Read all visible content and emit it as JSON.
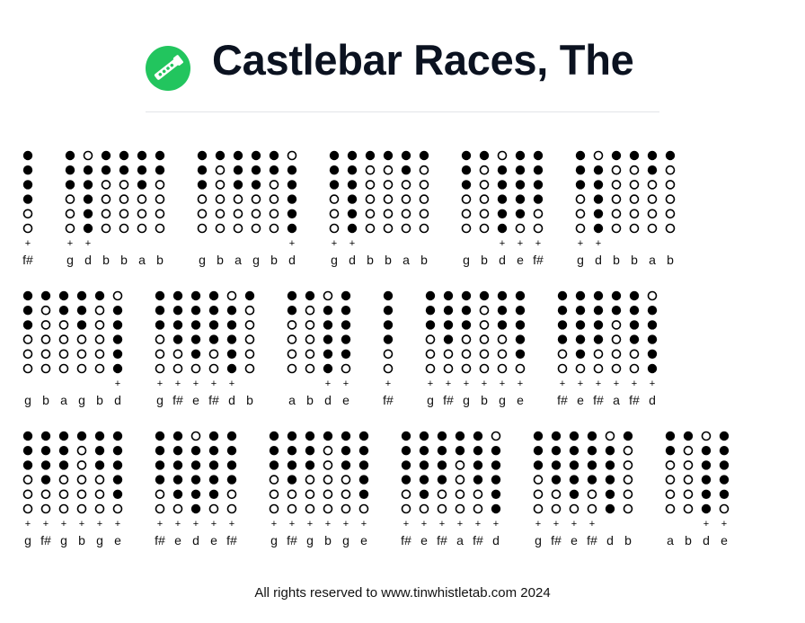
{
  "page": {
    "title": "Castlebar Races, The",
    "footer": "All rights reserved to www.tinwhistletab.com 2024",
    "logo_icon": "tin-whistle-icon",
    "accent_color": "#22c55e"
  },
  "tab": {
    "legend": {
      "closed": "filled hole",
      "open": "empty hole",
      "plus": "second octave"
    },
    "lines": [
      [
        [
          {
            "note": "f#",
            "holes": "111100",
            "plus": true
          }
        ],
        [
          {
            "note": "g",
            "holes": "111000",
            "plus": true
          },
          {
            "note": "d",
            "holes": "011111",
            "plus": true
          },
          {
            "note": "b",
            "holes": "110000",
            "plus": false
          },
          {
            "note": "b",
            "holes": "110000",
            "plus": false
          },
          {
            "note": "a",
            "holes": "111000",
            "plus": false
          },
          {
            "note": "b",
            "holes": "110000",
            "plus": false
          }
        ],
        [
          {
            "note": "g",
            "holes": "111000",
            "plus": false
          },
          {
            "note": "b",
            "holes": "100000",
            "plus": false
          },
          {
            "note": "a",
            "holes": "111000",
            "plus": false
          },
          {
            "note": "g",
            "holes": "111000",
            "plus": false
          },
          {
            "note": "b",
            "holes": "110000",
            "plus": false
          },
          {
            "note": "d",
            "holes": "011111",
            "plus": true
          }
        ],
        [
          {
            "note": "g",
            "holes": "111000",
            "plus": true
          },
          {
            "note": "d",
            "holes": "111111",
            "plus": true
          },
          {
            "note": "b",
            "holes": "100000",
            "plus": false
          },
          {
            "note": "b",
            "holes": "100000",
            "plus": false
          },
          {
            "note": "a",
            "holes": "110000",
            "plus": false
          },
          {
            "note": "b",
            "holes": "100000",
            "plus": false
          }
        ],
        [
          {
            "note": "g",
            "holes": "111000",
            "plus": false
          },
          {
            "note": "b",
            "holes": "100000",
            "plus": false
          },
          {
            "note": "d",
            "holes": "011111",
            "plus": true
          },
          {
            "note": "e",
            "holes": "111110",
            "plus": true
          },
          {
            "note": "f#",
            "holes": "111100",
            "plus": true
          }
        ],
        [
          {
            "note": "g",
            "holes": "111000",
            "plus": true
          },
          {
            "note": "d",
            "holes": "011111",
            "plus": true
          },
          {
            "note": "b",
            "holes": "100000",
            "plus": false
          },
          {
            "note": "b",
            "holes": "100000",
            "plus": false
          },
          {
            "note": "a",
            "holes": "110000",
            "plus": false
          },
          {
            "note": "b",
            "holes": "100000",
            "plus": false
          }
        ]
      ],
      [
        [
          {
            "note": "g",
            "holes": "111000",
            "plus": false
          },
          {
            "note": "b",
            "holes": "100000",
            "plus": false
          },
          {
            "note": "a",
            "holes": "110000",
            "plus": false
          },
          {
            "note": "g",
            "holes": "111000",
            "plus": false
          },
          {
            "note": "b",
            "holes": "100000",
            "plus": false
          },
          {
            "note": "d",
            "holes": "011111",
            "plus": true
          }
        ],
        [
          {
            "note": "g",
            "holes": "111000",
            "plus": true
          },
          {
            "note": "f#",
            "holes": "111100",
            "plus": true
          },
          {
            "note": "e",
            "holes": "111110",
            "plus": true
          },
          {
            "note": "f#",
            "holes": "111100",
            "plus": true
          },
          {
            "note": "d",
            "holes": "011111",
            "plus": true
          },
          {
            "note": "b",
            "holes": "100000",
            "plus": false
          }
        ],
        [
          {
            "note": "a",
            "holes": "110000",
            "plus": false
          },
          {
            "note": "b",
            "holes": "100000",
            "plus": false
          },
          {
            "note": "d",
            "holes": "011111",
            "plus": true
          },
          {
            "note": "e",
            "holes": "111110",
            "plus": true
          }
        ],
        [
          {
            "note": "f#",
            "holes": "111100",
            "plus": true
          }
        ],
        [
          {
            "note": "g",
            "holes": "111000",
            "plus": true
          },
          {
            "note": "f#",
            "holes": "111100",
            "plus": true
          },
          {
            "note": "g",
            "holes": "111000",
            "plus": true
          },
          {
            "note": "b",
            "holes": "100000",
            "plus": true
          },
          {
            "note": "g",
            "holes": "111000",
            "plus": true
          },
          {
            "note": "e",
            "holes": "111110",
            "plus": true
          }
        ],
        [
          {
            "note": "f#",
            "holes": "111100",
            "plus": true
          },
          {
            "note": "e",
            "holes": "111110",
            "plus": true
          },
          {
            "note": "f#",
            "holes": "111100",
            "plus": true
          },
          {
            "note": "a",
            "holes": "110000",
            "plus": true
          },
          {
            "note": "f#",
            "holes": "111100",
            "plus": true
          },
          {
            "note": "d",
            "holes": "011111",
            "plus": true
          }
        ]
      ],
      [
        [
          {
            "note": "g",
            "holes": "111000",
            "plus": true
          },
          {
            "note": "f#",
            "holes": "111100",
            "plus": true
          },
          {
            "note": "g",
            "holes": "111000",
            "plus": true
          },
          {
            "note": "b",
            "holes": "100000",
            "plus": true
          },
          {
            "note": "g",
            "holes": "111000",
            "plus": true
          },
          {
            "note": "e",
            "holes": "111110",
            "plus": true
          }
        ],
        [
          {
            "note": "f#",
            "holes": "111100",
            "plus": true
          },
          {
            "note": "e",
            "holes": "111110",
            "plus": true
          },
          {
            "note": "d",
            "holes": "011111",
            "plus": true
          },
          {
            "note": "e",
            "holes": "111110",
            "plus": true
          },
          {
            "note": "f#",
            "holes": "111100",
            "plus": true
          }
        ],
        [
          {
            "note": "g",
            "holes": "111000",
            "plus": true
          },
          {
            "note": "f#",
            "holes": "111100",
            "plus": true
          },
          {
            "note": "g",
            "holes": "111000",
            "plus": true
          },
          {
            "note": "b",
            "holes": "100000",
            "plus": true
          },
          {
            "note": "g",
            "holes": "111000",
            "plus": true
          },
          {
            "note": "e",
            "holes": "111110",
            "plus": true
          }
        ],
        [
          {
            "note": "f#",
            "holes": "111100",
            "plus": true
          },
          {
            "note": "e",
            "holes": "111110",
            "plus": true
          },
          {
            "note": "f#",
            "holes": "111100",
            "plus": true
          },
          {
            "note": "a",
            "holes": "110000",
            "plus": true
          },
          {
            "note": "f#",
            "holes": "111100",
            "plus": true
          },
          {
            "note": "d",
            "holes": "011111",
            "plus": true
          }
        ],
        [
          {
            "note": "g",
            "holes": "111000",
            "plus": true
          },
          {
            "note": "f#",
            "holes": "111100",
            "plus": true
          },
          {
            "note": "e",
            "holes": "111110",
            "plus": true
          },
          {
            "note": "f#",
            "holes": "111100",
            "plus": true
          },
          {
            "note": "d",
            "holes": "011111",
            "plus": false
          },
          {
            "note": "b",
            "holes": "100000",
            "plus": false
          }
        ],
        [
          {
            "note": "a",
            "holes": "110000",
            "plus": false
          },
          {
            "note": "b",
            "holes": "100000",
            "plus": false
          },
          {
            "note": "d",
            "holes": "011111",
            "plus": true
          },
          {
            "note": "e",
            "holes": "111110",
            "plus": true
          }
        ]
      ]
    ]
  }
}
